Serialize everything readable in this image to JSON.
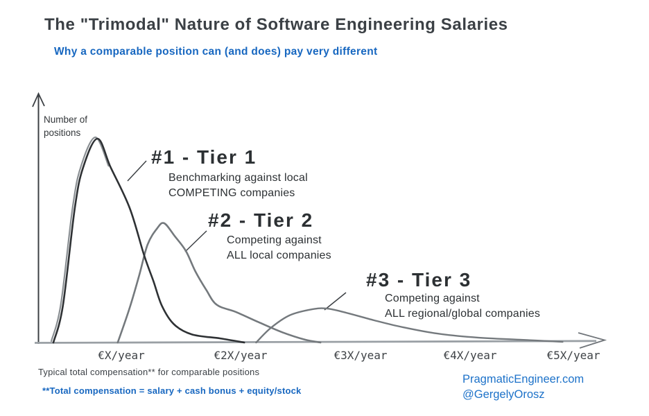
{
  "header": {
    "title": "The \"Trimodal\" Nature of Software Engineering Salaries",
    "subtitle": "Why a comparable position can (and does) pay very different"
  },
  "axes": {
    "y_label": {
      "line1": "Number of",
      "line2": "positions"
    },
    "x_ticks": [
      "€X/year",
      "€2X/year",
      "€3X/year",
      "€4X/year",
      "€5X/year"
    ]
  },
  "annotations": {
    "tier1": {
      "heading": "#1 - Tier 1",
      "line1": "Benchmarking against local",
      "line2": "COMPETING companies"
    },
    "tier2": {
      "heading": "#2 - Tier 2",
      "line1": "Competing against",
      "line2": "ALL local companies"
    },
    "tier3": {
      "heading": "#3 - Tier 3",
      "line1": "Competing against",
      "line2": "ALL regional/global companies"
    }
  },
  "footnotes": {
    "x_axis_note": "Typical total compensation** for comparable positions",
    "definition": "**Total compensation = salary + cash bonus + equity/stock"
  },
  "credits": {
    "site": "PragmaticEngineer.com",
    "handle": "@GergelyOrosz"
  },
  "colors": {
    "ink_dark": "#3b4045",
    "accent_blue": "#1767c0",
    "credit_blue": "#1d72c9",
    "curve_tier1": "#2e3134",
    "curve_tier23": "#74797d",
    "curve_double_pass": "#8a8f93",
    "axis_y": "#3c4044",
    "axis_x": "#9aa0a5"
  },
  "chart_data": {
    "type": "line",
    "title": "The \"Trimodal\" Nature of Software Engineering Salaries",
    "subtitle": "Why a comparable position can (and does) pay very different",
    "xlabel": "Typical total compensation** for comparable positions",
    "ylabel": "Number of positions",
    "x_tick_labels": [
      "€X/year",
      "€2X/year",
      "€3X/year",
      "€4X/year",
      "€5X/year"
    ],
    "x_tick_values": [
      1,
      2,
      3,
      4,
      5
    ],
    "x_unit": "multiples of €X total compensation per year",
    "y_axis_note": "relative number of positions, no numeric ticks shown",
    "xlim": [
      0.3,
      5.1
    ],
    "ylim": [
      0,
      1.1
    ],
    "grid": false,
    "legend": "none; curves labeled by leader-line annotations",
    "series": [
      {
        "name": "#1 - Tier 1",
        "annotation": "Benchmarking against local COMPETING companies",
        "stroke": "#2e3134",
        "peak": {
          "x": 0.8,
          "y": 1.0
        },
        "points": [
          [
            0.43,
            0
          ],
          [
            0.51,
            0.18
          ],
          [
            0.61,
            0.66
          ],
          [
            0.68,
            0.86
          ],
          [
            0.8,
            1.0
          ],
          [
            0.91,
            0.86
          ],
          [
            1.07,
            0.66
          ],
          [
            1.19,
            0.43
          ],
          [
            1.27,
            0.3
          ],
          [
            1.34,
            0.18
          ],
          [
            1.44,
            0.09
          ],
          [
            1.59,
            0.04
          ],
          [
            1.83,
            0.02
          ],
          [
            2.03,
            0
          ]
        ]
      },
      {
        "name": "#2 - Tier 2",
        "annotation": "Competing against ALL local companies",
        "stroke": "#74797d",
        "peak": {
          "x": 1.36,
          "y": 0.585
        },
        "points": [
          [
            0.97,
            0
          ],
          [
            1.07,
            0.17
          ],
          [
            1.15,
            0.33
          ],
          [
            1.22,
            0.48
          ],
          [
            1.3,
            0.56
          ],
          [
            1.36,
            0.585
          ],
          [
            1.45,
            0.52
          ],
          [
            1.54,
            0.45
          ],
          [
            1.62,
            0.35
          ],
          [
            1.71,
            0.26
          ],
          [
            1.8,
            0.185
          ],
          [
            1.96,
            0.15
          ],
          [
            2.15,
            0.1
          ],
          [
            2.35,
            0.05
          ],
          [
            2.54,
            0.014
          ],
          [
            2.67,
            0
          ]
        ]
      },
      {
        "name": "#3 - Tier 3",
        "annotation": "Competing against ALL regional/global companies",
        "stroke": "#74797d",
        "peak": {
          "x": 2.72,
          "y": 0.167
        },
        "points": [
          [
            2.13,
            0
          ],
          [
            2.25,
            0.07
          ],
          [
            2.41,
            0.133
          ],
          [
            2.6,
            0.163
          ],
          [
            2.72,
            0.167
          ],
          [
            2.86,
            0.15
          ],
          [
            3.12,
            0.109
          ],
          [
            3.36,
            0.075
          ],
          [
            3.65,
            0.044
          ],
          [
            3.99,
            0.024
          ],
          [
            4.34,
            0.014
          ],
          [
            4.7,
            0.003
          ]
        ]
      }
    ]
  }
}
